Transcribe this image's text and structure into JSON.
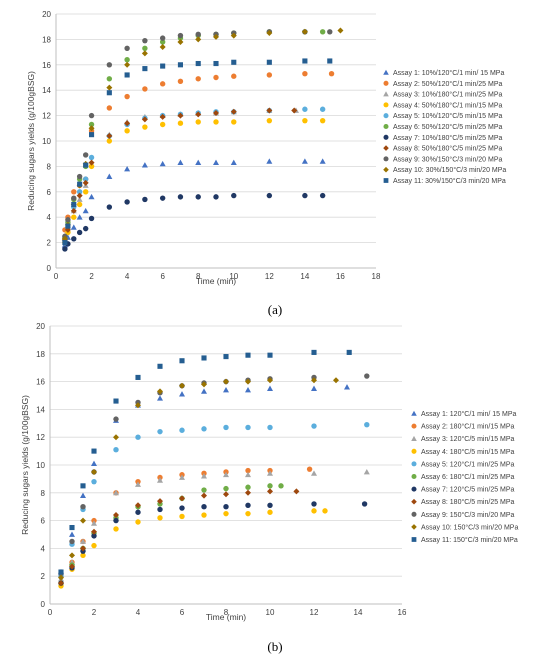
{
  "panels": [
    {
      "label": "(a)"
    },
    {
      "label": "(b)"
    }
  ],
  "chart_data": [
    {
      "type": "scatter",
      "title": "",
      "xlabel": "Time (min)",
      "ylabel": "Reducing sugars yields (g/100gBSG)",
      "xlim": [
        0,
        18
      ],
      "ylim": [
        0,
        20
      ],
      "xticks": [
        0,
        2,
        4,
        6,
        8,
        10,
        12,
        14,
        16,
        18
      ],
      "yticks": [
        0,
        2,
        4,
        6,
        8,
        10,
        12,
        14,
        16,
        18,
        20
      ],
      "grid": "horizontal",
      "legend_position": "right",
      "series": [
        {
          "name": "Assay 1: 10%/120°C/1 min/ 15 MPa",
          "marker": "triangle",
          "color": "#4472C4",
          "x": [
            0.5,
            0.67,
            1,
            1.33,
            1.67,
            2,
            3,
            4,
            5,
            6,
            7,
            8,
            9,
            10,
            12,
            14,
            15
          ],
          "y": [
            1.8,
            2.4,
            3.2,
            4.0,
            4.5,
            5.6,
            7.2,
            7.8,
            8.1,
            8.2,
            8.3,
            8.3,
            8.3,
            8.3,
            8.4,
            8.4,
            8.4
          ]
        },
        {
          "name": "Assay 2: 50%/120°C/1 min/25 MPa",
          "marker": "circle",
          "color": "#ED7D31",
          "x": [
            0.5,
            0.67,
            1,
            1.33,
            1.67,
            2,
            3,
            4,
            5,
            6,
            7,
            8,
            9,
            10,
            12,
            14,
            15.5
          ],
          "y": [
            3.0,
            4.0,
            6.0,
            6.5,
            7.0,
            10.8,
            12.6,
            13.5,
            14.1,
            14.5,
            14.7,
            14.9,
            15.0,
            15.1,
            15.2,
            15.3,
            15.3
          ]
        },
        {
          "name": "Assay 3: 10%/180°C/1 min/25 MPa",
          "marker": "triangle",
          "color": "#A5A5A5",
          "x": [
            0.5,
            0.67,
            1,
            1.33,
            1.67,
            2,
            3,
            4,
            5,
            6,
            7,
            8,
            9,
            10,
            12,
            13.5
          ],
          "y": [
            2.2,
            3.0,
            4.5,
            5.4,
            6.5,
            8.2,
            10.5,
            11.5,
            11.9,
            12.0,
            12.1,
            12.2,
            12.2,
            12.3,
            12.4,
            12.4
          ]
        },
        {
          "name": "Assay 4: 50%/180°C/1 min/15 MPa",
          "marker": "circle",
          "color": "#FFC000",
          "x": [
            0.5,
            0.67,
            1,
            1.33,
            1.67,
            2,
            3,
            4,
            5,
            6,
            7,
            8,
            9,
            10,
            12,
            14,
            15
          ],
          "y": [
            2.0,
            2.8,
            4.0,
            5.0,
            6.0,
            8.0,
            10.0,
            10.8,
            11.1,
            11.3,
            11.4,
            11.5,
            11.5,
            11.5,
            11.6,
            11.6,
            11.6
          ]
        },
        {
          "name": "Assay 5: 10%/120°C/5 min/15 MPa",
          "marker": "circle",
          "color": "#5BAEDD",
          "x": [
            0.5,
            0.67,
            1,
            1.33,
            1.67,
            2,
            3,
            4,
            5,
            6,
            7,
            8,
            9,
            10,
            12,
            14,
            15
          ],
          "y": [
            2.2,
            3.2,
            4.8,
            6.0,
            7.0,
            8.7,
            10.4,
            11.3,
            11.8,
            12.0,
            12.1,
            12.2,
            12.3,
            12.3,
            12.4,
            12.5,
            12.5
          ]
        },
        {
          "name": "Assay 6: 50%/120°C/5 min/25 MPa",
          "marker": "circle",
          "color": "#70AD47",
          "x": [
            0.5,
            0.67,
            1,
            1.33,
            1.67,
            2,
            3,
            4,
            5,
            6,
            7,
            8,
            9,
            10,
            12,
            14,
            15
          ],
          "y": [
            2.4,
            3.6,
            5.4,
            7.0,
            8.0,
            11.3,
            14.9,
            16.4,
            17.3,
            17.8,
            18.1,
            18.3,
            18.4,
            18.5,
            18.6,
            18.6,
            18.6
          ]
        },
        {
          "name": "Assay 7: 10%/180°C/5 min/25 MPa",
          "marker": "circle",
          "color": "#203864",
          "x": [
            0.5,
            0.67,
            1,
            1.33,
            1.67,
            2,
            3,
            4,
            5,
            6,
            7,
            8,
            9,
            10,
            12,
            14,
            15
          ],
          "y": [
            1.5,
            1.9,
            2.3,
            2.8,
            3.1,
            3.9,
            4.8,
            5.2,
            5.4,
            5.5,
            5.6,
            5.6,
            5.6,
            5.7,
            5.7,
            5.7,
            5.7
          ]
        },
        {
          "name": "Assay 8: 50%/180°C/5 min/25 MPa",
          "marker": "diamond",
          "color": "#9E480E",
          "x": [
            0.5,
            0.67,
            1,
            1.33,
            1.67,
            2,
            3,
            4,
            5,
            6,
            7,
            8,
            9,
            10,
            12,
            13.4
          ],
          "y": [
            2.2,
            3.0,
            4.5,
            5.7,
            6.7,
            8.3,
            10.4,
            11.4,
            11.7,
            11.9,
            12.0,
            12.1,
            12.2,
            12.3,
            12.4,
            12.4
          ]
        },
        {
          "name": "Assay 9: 30%/150°C/3 min/20 MPa",
          "marker": "circle",
          "color": "#636363",
          "x": [
            0.5,
            0.67,
            1,
            1.33,
            1.67,
            2,
            3,
            4,
            5,
            6,
            7,
            8,
            9,
            10,
            12,
            14,
            15.4
          ],
          "y": [
            2.5,
            3.8,
            5.5,
            7.2,
            8.9,
            12.0,
            16.0,
            17.3,
            17.9,
            18.1,
            18.3,
            18.4,
            18.4,
            18.5,
            18.6,
            18.6,
            18.6
          ]
        },
        {
          "name": "Assay 10: 30%/150°C/3 min/20 MPa",
          "marker": "diamond",
          "color": "#997300",
          "x": [
            0.5,
            0.67,
            1,
            1.33,
            1.67,
            2,
            3,
            4,
            5,
            6,
            7,
            8,
            9,
            10,
            12,
            14,
            16
          ],
          "y": [
            2.3,
            3.4,
            5.0,
            6.5,
            8.2,
            11.0,
            14.2,
            16.0,
            16.9,
            17.4,
            17.8,
            18.0,
            18.2,
            18.3,
            18.5,
            18.6,
            18.7
          ]
        },
        {
          "name": "Assay 11: 30%/150°C/3 min/20 MPa",
          "marker": "square",
          "color": "#255E91",
          "x": [
            0.5,
            0.67,
            1,
            1.33,
            1.67,
            2,
            3,
            4,
            5,
            6,
            7,
            8,
            9,
            10,
            12,
            14,
            15.4
          ],
          "y": [
            2.0,
            3.3,
            5.0,
            6.6,
            8.1,
            10.5,
            13.8,
            15.2,
            15.7,
            15.9,
            16.0,
            16.1,
            16.1,
            16.2,
            16.2,
            16.3,
            16.3
          ]
        }
      ]
    },
    {
      "type": "scatter",
      "title": "",
      "xlabel": "Time (min)",
      "ylabel": "Reducing sugars yields (g/100gBSG)",
      "xlim": [
        0,
        16
      ],
      "ylim": [
        0,
        20
      ],
      "xticks": [
        0,
        2,
        4,
        6,
        8,
        10,
        12,
        14,
        16
      ],
      "yticks": [
        0,
        2,
        4,
        6,
        8,
        10,
        12,
        14,
        16,
        18,
        20
      ],
      "grid": "horizontal",
      "legend_position": "right",
      "series": [
        {
          "name": "Assay 1: 120°C/1 min/ 15 MPa",
          "marker": "triangle",
          "color": "#4472C4",
          "x": [
            0.5,
            1,
            1.5,
            2,
            3,
            4,
            5,
            6,
            7,
            8,
            9,
            10,
            12,
            13.5
          ],
          "y": [
            2.3,
            5.0,
            7.8,
            10.1,
            13.2,
            14.3,
            14.8,
            15.1,
            15.3,
            15.4,
            15.4,
            15.5,
            15.5,
            15.6
          ]
        },
        {
          "name": "Assay 2: 180°C/1 min/15 MPa",
          "marker": "circle",
          "color": "#ED7D31",
          "x": [
            0.5,
            1,
            1.5,
            2,
            3,
            4,
            5,
            6,
            7,
            8,
            9,
            10,
            11.8
          ],
          "y": [
            2.0,
            3.0,
            4.5,
            6.0,
            8.0,
            8.8,
            9.1,
            9.3,
            9.4,
            9.5,
            9.6,
            9.6,
            9.7
          ]
        },
        {
          "name": "Assay 3: 120°C/5 min/15 MPa",
          "marker": "triangle",
          "color": "#A5A5A5",
          "x": [
            0.5,
            1,
            1.5,
            2,
            3,
            4,
            5,
            6,
            7,
            8,
            9,
            10,
            12,
            14.4
          ],
          "y": [
            1.8,
            3.0,
            4.5,
            5.8,
            8.0,
            8.6,
            8.9,
            9.1,
            9.2,
            9.3,
            9.3,
            9.4,
            9.4,
            9.5
          ]
        },
        {
          "name": "Assay 4: 180°C/5 min/15 MPa",
          "marker": "circle",
          "color": "#FFC000",
          "x": [
            0.5,
            1,
            1.5,
            2,
            3,
            4,
            5,
            6,
            7,
            8,
            9,
            10,
            12,
            12.5
          ],
          "y": [
            1.3,
            2.5,
            3.5,
            4.2,
            5.4,
            5.9,
            6.2,
            6.3,
            6.4,
            6.5,
            6.5,
            6.6,
            6.7,
            6.7
          ]
        },
        {
          "name": "Assay 5: 120°C/1 min/25 MPa",
          "marker": "circle",
          "color": "#5BAEDD",
          "x": [
            0.5,
            1,
            1.5,
            2,
            3,
            4,
            5,
            6,
            7,
            8,
            9,
            10,
            12,
            14.4
          ],
          "y": [
            2.0,
            4.3,
            6.8,
            8.8,
            11.1,
            12.0,
            12.4,
            12.5,
            12.6,
            12.7,
            12.7,
            12.7,
            12.8,
            12.9
          ]
        },
        {
          "name": "Assay 6: 180°C/1 min/25 MPa",
          "marker": "circle",
          "color": "#70AD47",
          "x": [
            0.5,
            1,
            1.5,
            2,
            3,
            4,
            5,
            6,
            7,
            8,
            9,
            10,
            10.5
          ],
          "y": [
            1.5,
            2.8,
            4.0,
            5.1,
            6.2,
            7.0,
            7.2,
            7.6,
            8.2,
            8.3,
            8.4,
            8.5,
            8.5
          ]
        },
        {
          "name": "Assay 7: 120°C/5 min/25 MPa",
          "marker": "circle",
          "color": "#203864",
          "x": [
            0.5,
            1,
            1.5,
            2,
            3,
            4,
            5,
            6,
            7,
            8,
            9,
            10,
            12,
            14.3
          ],
          "y": [
            1.5,
            2.6,
            3.8,
            4.9,
            6.0,
            6.6,
            6.8,
            6.9,
            7.0,
            7.0,
            7.1,
            7.1,
            7.2,
            7.2
          ]
        },
        {
          "name": "Assay 8: 180°C/5 min/25 MPa",
          "marker": "diamond",
          "color": "#9E480E",
          "x": [
            0.5,
            1,
            1.5,
            2,
            3,
            4,
            5,
            6,
            7,
            8,
            9,
            10,
            11.2
          ],
          "y": [
            1.5,
            2.7,
            4.0,
            5.2,
            6.4,
            7.1,
            7.4,
            7.6,
            7.8,
            7.9,
            8.0,
            8.1,
            8.1
          ]
        },
        {
          "name": "Assay 9: 150°C/3 min/20 MPa",
          "marker": "circle",
          "color": "#636363",
          "x": [
            0.5,
            1,
            1.5,
            2,
            3,
            4,
            5,
            6,
            7,
            8,
            9,
            10,
            12,
            14.4
          ],
          "y": [
            2.2,
            4.5,
            7.0,
            9.5,
            13.3,
            14.5,
            15.2,
            15.7,
            15.9,
            16.0,
            16.1,
            16.2,
            16.3,
            16.4
          ]
        },
        {
          "name": "Assay 10: 150°C/3 min/20 MPa",
          "marker": "diamond",
          "color": "#997300",
          "x": [
            0.5,
            1,
            1.5,
            2,
            3,
            4,
            5,
            6,
            7,
            8,
            9,
            10,
            12,
            13
          ],
          "y": [
            1.9,
            3.5,
            6.0,
            9.5,
            12.0,
            14.3,
            15.3,
            15.7,
            15.8,
            16.0,
            16.0,
            16.1,
            16.1,
            16.1
          ]
        },
        {
          "name": "Assay 11: 150°C/3 min/20 MPa",
          "marker": "square",
          "color": "#255E91",
          "x": [
            0.5,
            1,
            1.5,
            2,
            3,
            4,
            5,
            6,
            7,
            8,
            9,
            10,
            12,
            13.6
          ],
          "y": [
            2.3,
            5.5,
            8.5,
            11.0,
            14.6,
            16.3,
            17.1,
            17.5,
            17.7,
            17.8,
            17.9,
            17.9,
            18.1,
            18.1
          ]
        }
      ]
    }
  ]
}
